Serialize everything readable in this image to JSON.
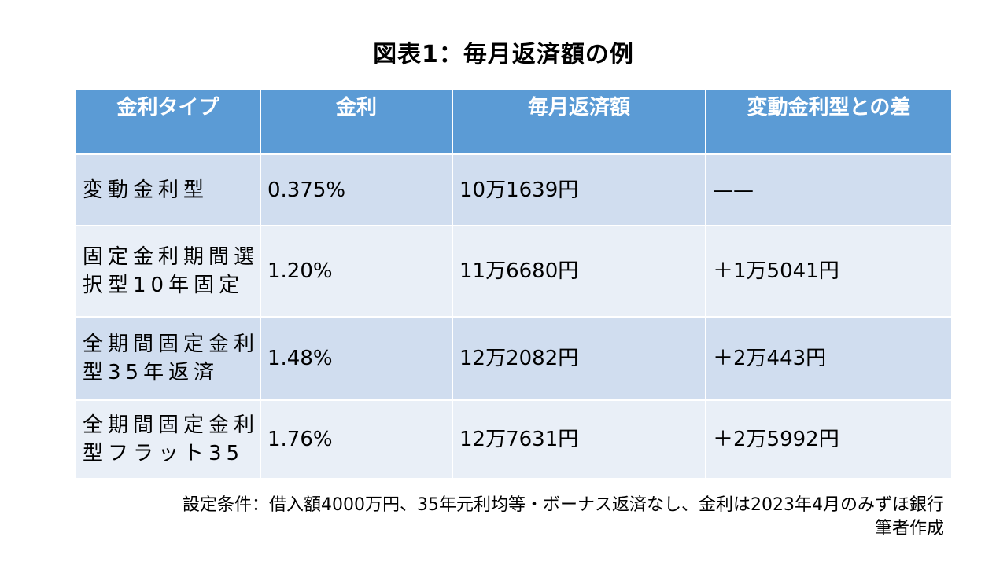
{
  "title": "図表1：毎月返済額の例",
  "table": {
    "headers": [
      "金利タイプ",
      "金利",
      "毎月返済額",
      "変動金利型との差"
    ],
    "rows": [
      {
        "type": "変動金利型",
        "rate": "0.375%",
        "payment": "10万1639円",
        "diff": "——"
      },
      {
        "type": "固定金利期間選択型10年固定",
        "rate": "1.20%",
        "payment": "11万6680円",
        "diff": "＋1万5041円"
      },
      {
        "type": "全期間固定金利型35年返済",
        "rate": "1.48%",
        "payment": "12万2082円",
        "diff": "＋2万443円"
      },
      {
        "type": "全期間固定金利型フラット35",
        "rate": "1.76%",
        "payment": "12万7631円",
        "diff": "＋2万5992円"
      }
    ]
  },
  "notes": {
    "conditions": "設定条件：借入額4000万円、35年元利均等・ボーナス返済なし、金利は2023年4月のみずほ銀行",
    "author": "筆者作成"
  }
}
